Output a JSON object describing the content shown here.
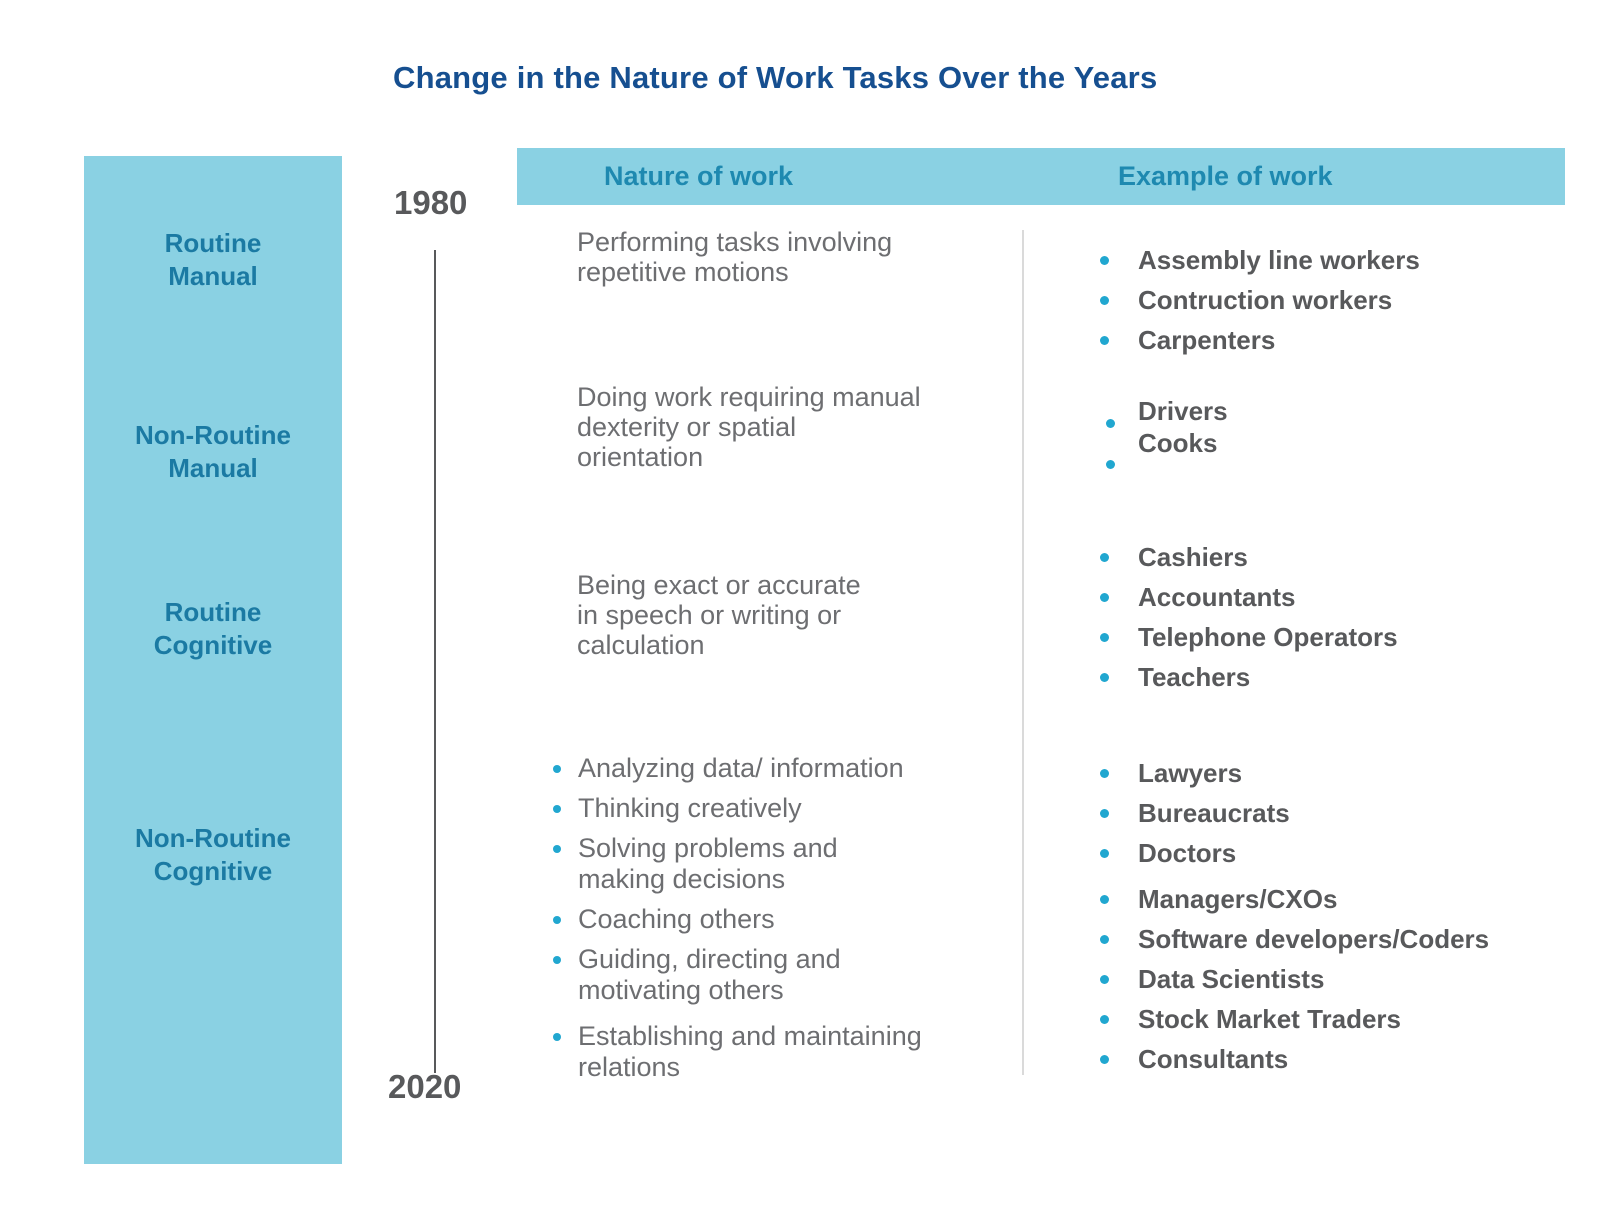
{
  "title": "Change in the Nature of Work Tasks Over the Years",
  "colors": {
    "title-navy": "#164F90",
    "band-blue": "#8AD1E3",
    "category-teal": "#1B7AA3",
    "header-teal": "#1E89B0",
    "body-gray": "#6D6E71",
    "bold-gray": "#58595B",
    "bullet-cyan": "#21A7D0",
    "timeline-gray": "#58595B",
    "divider-gray": "#DADADA"
  },
  "timeline": {
    "start": "1980",
    "end": "2020"
  },
  "header": {
    "nature": "Nature of work",
    "example": "Example of work"
  },
  "sidebar": {
    "items": [
      {
        "label": "Routine\nManual"
      },
      {
        "label": "Non-Routine\nManual"
      },
      {
        "label": "Routine\nCognitive"
      },
      {
        "label": "Non-Routine\nCognitive"
      }
    ]
  },
  "rows": [
    {
      "category": "Routine Manual",
      "nature": "Performing tasks involving\nrepetitive motions",
      "examples": [
        "Assembly line workers",
        "Contruction workers",
        "Carpenters"
      ]
    },
    {
      "category": "Non-Routine Manual",
      "nature": "Doing work requiring manual\ndexterity or spatial\norientation",
      "examples": [
        "Drivers",
        "Cooks"
      ]
    },
    {
      "category": "Routine Cognitive",
      "nature": "Being exact or accurate\nin speech or writing or\ncalculation",
      "examples": [
        "Cashiers",
        "Accountants",
        "Telephone Operators",
        "Teachers"
      ]
    },
    {
      "category": "Non-Routine Cognitive",
      "nature_bullets": [
        "Analyzing data/ information",
        "Thinking creatively",
        "Solving problems and\nmaking decisions",
        "Coaching others",
        "Guiding, directing and\nmotivating others",
        "Establishing and maintaining\nrelations"
      ],
      "examples": [
        "Lawyers",
        "Bureaucrats",
        "Doctors",
        "Managers/CXOs",
        "Software developers/Coders",
        "Data Scientists",
        "Stock Market Traders",
        "Consultants"
      ]
    }
  ]
}
